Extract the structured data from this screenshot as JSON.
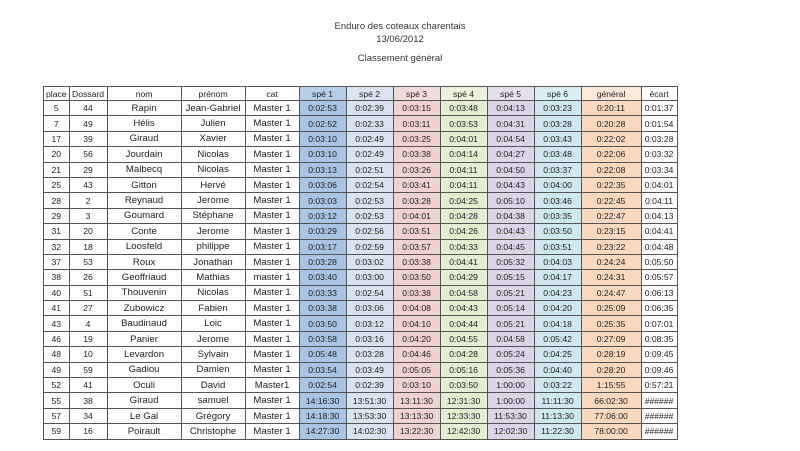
{
  "header": {
    "title": "Enduro des coteaux charentais",
    "date": "13/06/2012",
    "subtitle": "Classement général"
  },
  "columns": [
    "place",
    "Dossard",
    "nom",
    "prénom",
    "cat",
    "spé 1",
    "spé 2",
    "spé 3",
    "spé 4",
    "spé 5",
    "spé 6",
    "général",
    "écart"
  ],
  "rows": [
    [
      "5",
      "44",
      "Rapin",
      "Jean-Gabriel",
      "Master 1",
      "0:02:53",
      "0:02:39",
      "0:03:15",
      "0:03:48",
      "0:04:13",
      "0:03:23",
      "0:20:11",
      "0:01:37"
    ],
    [
      "7",
      "49",
      "Hélis",
      "Julien",
      "Master 1",
      "0:02:52",
      "0:02:33",
      "0:03:11",
      "0:03:53",
      "0:04:31",
      "0:03:28",
      "0:20:28",
      "0:01:54"
    ],
    [
      "17",
      "39",
      "Giraud",
      "Xavier",
      "Master 1",
      "0:03:10",
      "0:02:49",
      "0:03:25",
      "0:04:01",
      "0:04:54",
      "0:03:43",
      "0:22:02",
      "0:03:28"
    ],
    [
      "20",
      "56",
      "Jourdain",
      "Nicolas",
      "Master 1",
      "0:03:10",
      "0:02:49",
      "0:03:38",
      "0:04:14",
      "0:04:27",
      "0:03:48",
      "0:22:06",
      "0:03:32"
    ],
    [
      "21",
      "29",
      "Malbecq",
      "Nicolas",
      "Master 1",
      "0:03:13",
      "0:02:51",
      "0:03:26",
      "0:04:11",
      "0:04:50",
      "0:03:37",
      "0:22:08",
      "0:03:34"
    ],
    [
      "25",
      "43",
      "Gitton",
      "Hervé",
      "Master 1",
      "0:03:06",
      "0:02:54",
      "0:03:41",
      "0:04:11",
      "0:04:43",
      "0:04:00",
      "0:22:35",
      "0:04:01"
    ],
    [
      "28",
      "2",
      "Reynaud",
      "Jerome",
      "Master 1",
      "0:03:03",
      "0:02:53",
      "0:03:28",
      "0:04:25",
      "0:05:10",
      "0:03:46",
      "0:22:45",
      "0:04:11"
    ],
    [
      "29",
      "3",
      "Goumard",
      "Stéphane",
      "Master 1",
      "0:03:12",
      "0:02:53",
      "0:04:01",
      "0:04:28",
      "0:04:38",
      "0:03:35",
      "0:22:47",
      "0:04:13"
    ],
    [
      "31",
      "20",
      "Conte",
      "Jerome",
      "Master 1",
      "0:03:29",
      "0:02:56",
      "0:03:51",
      "0:04:26",
      "0:04:43",
      "0:03:50",
      "0:23:15",
      "0:04:41"
    ],
    [
      "32",
      "18",
      "Loosfeld",
      "philippe",
      "Master 1",
      "0:03:17",
      "0:02:59",
      "0:03:57",
      "0:04:33",
      "0:04:45",
      "0:03:51",
      "0:23:22",
      "0:04:48"
    ],
    [
      "37",
      "53",
      "Roux",
      "Jonathan",
      "Master 1",
      "0:03:28",
      "0:03:02",
      "0:03:38",
      "0:04:41",
      "0:05:32",
      "0:04:03",
      "0:24:24",
      "0:05:50"
    ],
    [
      "38",
      "26",
      "Geoffriaud",
      "Mathias",
      "master 1",
      "0:03:40",
      "0:03:00",
      "0:03:50",
      "0:04:29",
      "0:05:15",
      "0:04:17",
      "0:24:31",
      "0:05:57"
    ],
    [
      "40",
      "51",
      "Thouvenin",
      "Nicolas",
      "Master 1",
      "0:03:33",
      "0:02:54",
      "0:03:38",
      "0:04:58",
      "0:05:21",
      "0:04:23",
      "0:24:47",
      "0:06:13"
    ],
    [
      "41",
      "27",
      "Zubowicz",
      "Fabien",
      "Master 1",
      "0:03:38",
      "0:03:06",
      "0:04:08",
      "0:04:43",
      "0:05:14",
      "0:04:20",
      "0:25:09",
      "0:06:35"
    ],
    [
      "43",
      "4",
      "Baudinaud",
      "Loic",
      "Master 1",
      "0:03:50",
      "0:03:12",
      "0:04:10",
      "0:04:44",
      "0:05:21",
      "0:04:18",
      "0:25:35",
      "0:07:01"
    ],
    [
      "46",
      "19",
      "Panier",
      "Jerome",
      "Master 1",
      "0:03:58",
      "0:03:16",
      "0:04:20",
      "0:04:55",
      "0:04:58",
      "0:05:42",
      "0:27:09",
      "0:08:35"
    ],
    [
      "48",
      "10",
      "Levardon",
      "Sylvain",
      "Master 1",
      "0:05:48",
      "0:03:28",
      "0:04:46",
      "0:04:28",
      "0:05:24",
      "0:04:25",
      "0:28:19",
      "0:09:45"
    ],
    [
      "49",
      "59",
      "Gadiou",
      "Damien",
      "Master 1",
      "0:03:54",
      "0:03:49",
      "0:05:05",
      "0:05:16",
      "0:05:36",
      "0:04:40",
      "0:28:20",
      "0:09:46"
    ],
    [
      "52",
      "41",
      "Oculi",
      "David",
      "Master1",
      "0:02:54",
      "0:02:39",
      "0:03:10",
      "0:03:50",
      "1:00:00",
      "0:03:22",
      "1:15:55",
      "0:57:21"
    ],
    [
      "55",
      "38",
      "Giraud",
      "samuel",
      "Master 1",
      "14:16:30",
      "13:51:30",
      "13:11:30",
      "12:31:30",
      "1:00:00",
      "11:11:30",
      "66:02:30",
      "######"
    ],
    [
      "57",
      "34",
      "Le Gal",
      "Grégory",
      "Master 1",
      "14:18:30",
      "13:53:30",
      "13:13:30",
      "12:33:30",
      "11:53:30",
      "11:13:30",
      "77:06:00",
      "######"
    ],
    [
      "59",
      "16",
      "Poirault",
      "Christophe",
      "Master 1",
      "14:27:30",
      "14:02:30",
      "13:22:30",
      "12:42:30",
      "12:02:30",
      "11:22:30",
      "78:00:00",
      "######"
    ]
  ],
  "colors": {
    "spe1": "#a9c4e5",
    "spe2": "#dae3f0",
    "spe3": "#f0d2d1",
    "spe4": "#e4edd2",
    "spe5": "#ddd5e7",
    "spe6": "#cfe7ef",
    "general": "#fbd9c0"
  }
}
